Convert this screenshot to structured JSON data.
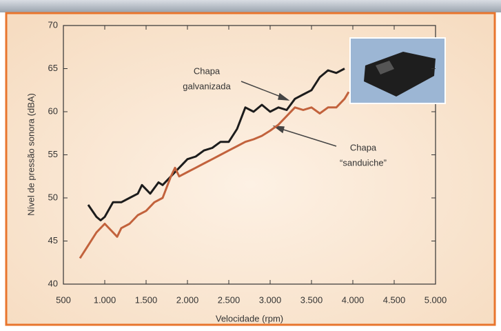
{
  "chart_data": {
    "type": "line",
    "xlabel": "Velocidade (rpm)",
    "ylabel": "Nível de pressão sonora (dBA)",
    "xlim": [
      500,
      5000
    ],
    "xticks": [
      {
        "value": 500,
        "label": "500"
      },
      {
        "value": 1000,
        "label": "1.000"
      },
      {
        "value": 1500,
        "label": "1.500"
      },
      {
        "value": 2000,
        "label": "2.000"
      },
      {
        "value": 2500,
        "label": "2.500"
      },
      {
        "value": 3000,
        "label": "3.000"
      },
      {
        "value": 3500,
        "label": "3.500"
      },
      {
        "value": 4000,
        "label": "4.000"
      },
      {
        "value": 4500,
        "label": "4.500"
      },
      {
        "value": 5000,
        "label": "5.000"
      }
    ],
    "ylim": [
      40,
      70
    ],
    "yticks": [
      40,
      45,
      50,
      55,
      60,
      65,
      70
    ],
    "series": [
      {
        "color": "#1c1c1c",
        "x": [
          800,
          900,
          950,
          1000,
          1100,
          1200,
          1300,
          1400,
          1450,
          1550,
          1650,
          1700,
          1800,
          1900,
          2000,
          2100,
          2200,
          2300,
          2400,
          2500,
          2600,
          2700,
          2800,
          2900,
          3000,
          3100,
          3200,
          3300,
          3400,
          3500,
          3600,
          3700,
          3800,
          3900
        ],
        "values": [
          49.2,
          47.8,
          47.4,
          47.8,
          49.5,
          49.5,
          50,
          50.5,
          51.5,
          50.5,
          51.8,
          51.5,
          52.5,
          53.5,
          54.5,
          54.8,
          55.5,
          55.8,
          56.5,
          56.5,
          58,
          60.5,
          60,
          60.8,
          60,
          60.5,
          60.2,
          61.5,
          62,
          62.5,
          64,
          64.8,
          64.5,
          65
        ]
      },
      {
        "color": "#c2623c",
        "x": [
          700,
          800,
          900,
          1000,
          1100,
          1150,
          1200,
          1300,
          1400,
          1500,
          1600,
          1700,
          1800,
          1850,
          1900,
          2000,
          2100,
          2200,
          2300,
          2400,
          2500,
          2600,
          2700,
          2800,
          2900,
          3000,
          3100,
          3200,
          3300,
          3400,
          3500,
          3600,
          3700,
          3800,
          3900,
          3950
        ],
        "values": [
          43,
          44.5,
          46,
          47,
          46,
          45.5,
          46.5,
          47,
          48,
          48.5,
          49.5,
          50,
          52.5,
          53.5,
          52.5,
          53,
          53.5,
          54,
          54.5,
          55,
          55.5,
          56,
          56.5,
          56.8,
          57.2,
          57.8,
          58.5,
          59.5,
          60.5,
          60.2,
          60.5,
          59.8,
          60.5,
          60.5,
          61.5,
          62.3
        ]
      }
    ],
    "annotations": [
      {
        "lines": [
          "Chapa",
          "galvanizada"
        ]
      },
      {
        "lines": [
          "Chapa",
          "“sanduiche”"
        ]
      }
    ]
  }
}
